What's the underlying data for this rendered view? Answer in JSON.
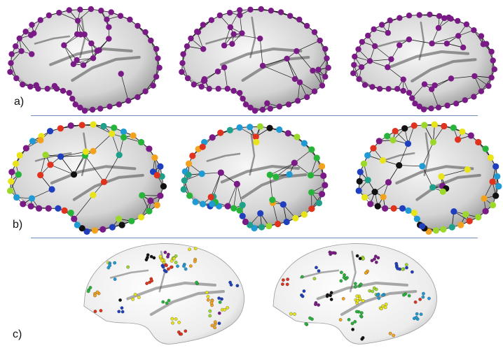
{
  "panels": [
    {
      "label": "a)",
      "style": "mesh-uniform",
      "node_color": "#7a1a86",
      "brain_count": 3
    },
    {
      "label": "b)",
      "style": "mesh-clustered",
      "brain_count": 3,
      "cluster_colors": [
        "#111111",
        "#7a1a86",
        "#1f3fbf",
        "#1e9bd4",
        "#1fa08a",
        "#27b43a",
        "#9bd829",
        "#e8e417",
        "#f2a21c",
        "#e0321c"
      ]
    },
    {
      "label": "c)",
      "style": "points-clustered",
      "brain_count": 2,
      "cluster_colors": [
        "#111111",
        "#7a1a86",
        "#1f3fbf",
        "#1e9bd4",
        "#27b43a",
        "#9bd829",
        "#e8e417",
        "#f2a21c",
        "#e0321c"
      ]
    }
  ],
  "colors": {
    "divider": "#6f8fb8",
    "surface_light": "#f4f4f4",
    "surface_dark": "#6e6e6e",
    "edge": "#1a1a1a"
  }
}
